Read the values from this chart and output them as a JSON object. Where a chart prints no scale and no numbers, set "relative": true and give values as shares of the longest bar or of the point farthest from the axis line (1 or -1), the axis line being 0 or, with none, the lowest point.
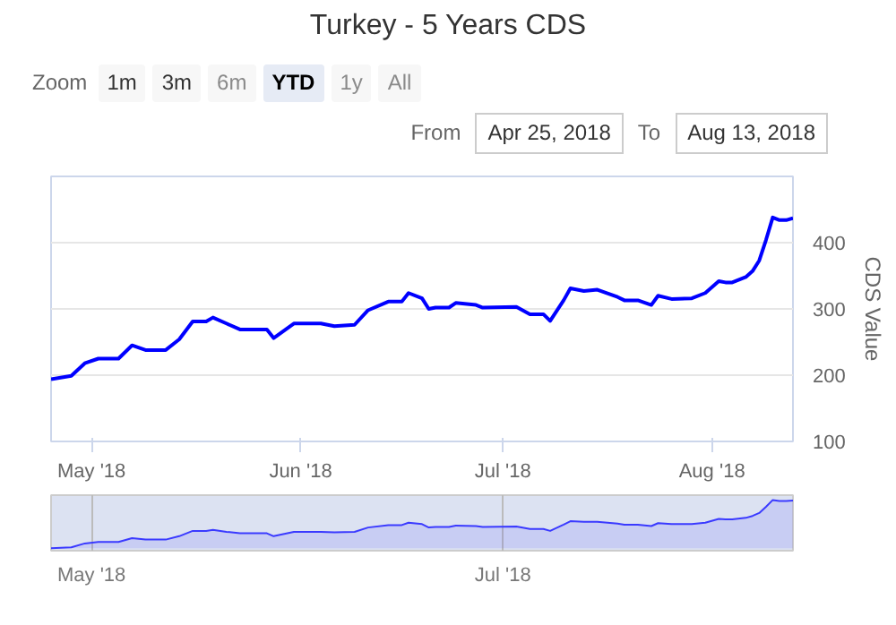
{
  "chart_data": [
    {
      "type": "line",
      "title": "Turkey - 5 Years CDS",
      "ylabel": "CDS Value",
      "annotations": [
        "Zoom",
        "1m",
        "3m",
        "6m",
        "YTD",
        "1y",
        "All",
        "From",
        "Apr 25, 2018",
        "To",
        "Aug 13, 2018"
      ],
      "x": [
        "2018-04-25",
        "2018-04-28",
        "2018-04-30",
        "2018-05-02",
        "2018-05-05",
        "2018-05-07",
        "2018-05-09",
        "2018-05-12",
        "2018-05-14",
        "2018-05-16",
        "2018-05-18",
        "2018-05-19",
        "2018-05-21",
        "2018-05-23",
        "2018-05-27",
        "2018-05-28",
        "2018-05-31",
        "2018-06-04",
        "2018-06-06",
        "2018-06-09",
        "2018-06-11",
        "2018-06-14",
        "2018-06-16",
        "2018-06-17",
        "2018-06-19",
        "2018-06-20",
        "2018-06-21",
        "2018-06-23",
        "2018-06-24",
        "2018-06-27",
        "2018-06-28",
        "2018-07-03",
        "2018-07-05",
        "2018-07-07",
        "2018-07-08",
        "2018-07-10",
        "2018-07-11",
        "2018-07-13",
        "2018-07-15",
        "2018-07-18",
        "2018-07-19",
        "2018-07-21",
        "2018-07-23",
        "2018-07-24",
        "2018-07-26",
        "2018-07-29",
        "2018-07-31",
        "2018-08-02",
        "2018-08-03",
        "2018-08-04",
        "2018-08-06",
        "2018-08-07",
        "2018-08-08",
        "2018-08-09",
        "2018-08-10",
        "2018-08-11",
        "2018-08-12",
        "2018-08-13"
      ],
      "series": [
        {
          "color": "#0000ff",
          "values": [
            194,
            199,
            218,
            225,
            225,
            245,
            238,
            238,
            254,
            281,
            281,
            287,
            278,
            269,
            269,
            256,
            278,
            278,
            274,
            276,
            298,
            311,
            311,
            324,
            316,
            300,
            302,
            302,
            309,
            306,
            302,
            303,
            292,
            292,
            282,
            313,
            331,
            327,
            329,
            318,
            313,
            313,
            306,
            320,
            315,
            316,
            324,
            342,
            340,
            340,
            348,
            357,
            373,
            404,
            438,
            434,
            434,
            437
          ]
        }
      ],
      "xlim": [
        "2018-04-25",
        "2018-08-13"
      ],
      "xticks": [
        {
          "value": "2018-05-01",
          "label": "May '18"
        },
        {
          "value": "2018-06-01",
          "label": "Jun '18"
        },
        {
          "value": "2018-07-01",
          "label": "Jul '18"
        },
        {
          "value": "2018-08-01",
          "label": "Aug '18"
        }
      ],
      "ylim": [
        100,
        500
      ],
      "yticks": [
        100,
        200,
        300,
        400,
        {
          "value": 500,
          "label": null
        }
      ],
      "grid": "y",
      "marker": "none",
      "line_style": "solid"
    },
    {
      "type": "area",
      "relative": true,
      "x": [
        "2018-04-25",
        "2018-04-28",
        "2018-04-30",
        "2018-05-02",
        "2018-05-05",
        "2018-05-07",
        "2018-05-09",
        "2018-05-12",
        "2018-05-14",
        "2018-05-16",
        "2018-05-18",
        "2018-05-19",
        "2018-05-21",
        "2018-05-23",
        "2018-05-27",
        "2018-05-28",
        "2018-05-31",
        "2018-06-04",
        "2018-06-06",
        "2018-06-09",
        "2018-06-11",
        "2018-06-14",
        "2018-06-16",
        "2018-06-17",
        "2018-06-19",
        "2018-06-20",
        "2018-06-21",
        "2018-06-23",
        "2018-06-24",
        "2018-06-27",
        "2018-06-28",
        "2018-07-03",
        "2018-07-05",
        "2018-07-07",
        "2018-07-08",
        "2018-07-10",
        "2018-07-11",
        "2018-07-13",
        "2018-07-15",
        "2018-07-18",
        "2018-07-19",
        "2018-07-21",
        "2018-07-23",
        "2018-07-24",
        "2018-07-26",
        "2018-07-29",
        "2018-07-31",
        "2018-08-02",
        "2018-08-03",
        "2018-08-04",
        "2018-08-06",
        "2018-08-07",
        "2018-08-08",
        "2018-08-09",
        "2018-08-10",
        "2018-08-11",
        "2018-08-12",
        "2018-08-13"
      ],
      "series": [
        {
          "color": "#3a3aff",
          "values": [
            0,
            0.02,
            0.1,
            0.13,
            0.13,
            0.21,
            0.18,
            0.18,
            0.25,
            0.36,
            0.36,
            0.38,
            0.34,
            0.31,
            0.31,
            0.25,
            0.34,
            0.34,
            0.33,
            0.34,
            0.43,
            0.48,
            0.48,
            0.53,
            0.5,
            0.43,
            0.44,
            0.44,
            0.47,
            0.46,
            0.44,
            0.45,
            0.4,
            0.4,
            0.36,
            0.49,
            0.56,
            0.55,
            0.55,
            0.51,
            0.49,
            0.49,
            0.46,
            0.52,
            0.5,
            0.5,
            0.53,
            0.61,
            0.6,
            0.6,
            0.63,
            0.67,
            0.73,
            0.86,
            1,
            0.98,
            0.98,
            0.99
          ]
        }
      ],
      "xlim": [
        "2018-04-25",
        "2018-08-13"
      ],
      "xticks": [
        {
          "value": "2018-05-01",
          "label": "May '18"
        },
        {
          "value": "2018-07-01",
          "label": "Jul '18"
        }
      ],
      "grid": "x",
      "tick_labels": "x"
    }
  ]
}
